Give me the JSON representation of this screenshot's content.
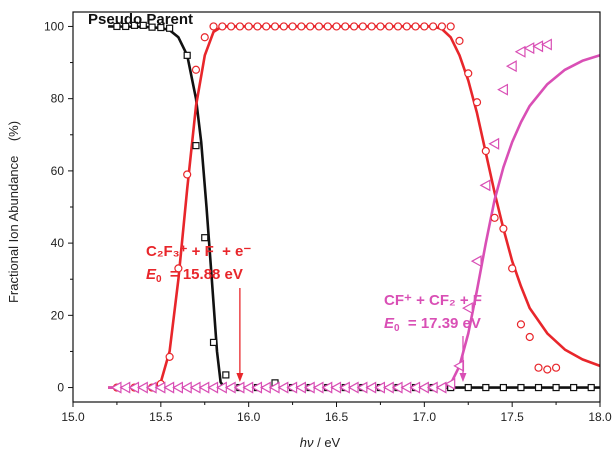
{
  "chart_data": {
    "type": "scatter",
    "xlabel_italic": "hν",
    "xlabel_rest": " / eV",
    "ylabel": "Fractional Ion Abundance    (%)",
    "xlim": [
      15.0,
      18.0
    ],
    "ylim": [
      -4,
      104
    ],
    "xticks": [
      "15.0",
      "15.5",
      "16.0",
      "16.5",
      "17.0",
      "17.5",
      "18.0"
    ],
    "yticks": [
      "0",
      "20",
      "40",
      "60",
      "80",
      "100"
    ],
    "annotations": {
      "pseudo_parent": "Pseudo Parent",
      "c2f3": {
        "line1": "C₂F₃⁺ + F  + e⁻",
        "e0_sym": "E",
        "e0_sub": "0",
        "e0_val": "  = 15.88 eV",
        "arrow_x": 15.95
      },
      "cf": {
        "line1": "CF⁺ + CF₂ + F",
        "e0_sym": "E",
        "e0_sub": "0",
        "e0_val": "  = 17.39 eV",
        "arrow_x": 17.22
      }
    },
    "series": [
      {
        "color": "#111111",
        "marker": "square",
        "points": [
          [
            15.25,
            100
          ],
          [
            15.3,
            100
          ],
          [
            15.35,
            100.3
          ],
          [
            15.4,
            100.3
          ],
          [
            15.45,
            99.8
          ],
          [
            15.5,
            99.7
          ],
          [
            15.55,
            99.5
          ],
          [
            15.65,
            92
          ],
          [
            15.7,
            67
          ],
          [
            15.75,
            41.5
          ],
          [
            15.8,
            12.5
          ],
          [
            15.87,
            3.5
          ],
          [
            15.95,
            0
          ],
          [
            16.05,
            0
          ],
          [
            16.15,
            1.3
          ],
          [
            16.25,
            0
          ],
          [
            16.35,
            0
          ],
          [
            16.45,
            0
          ],
          [
            16.55,
            0
          ],
          [
            16.65,
            0
          ],
          [
            16.75,
            0
          ],
          [
            16.85,
            0
          ],
          [
            16.95,
            0
          ],
          [
            17.05,
            0
          ],
          [
            17.15,
            0
          ],
          [
            17.25,
            0
          ],
          [
            17.35,
            0
          ],
          [
            17.45,
            0
          ],
          [
            17.55,
            0
          ],
          [
            17.65,
            0
          ],
          [
            17.75,
            0
          ],
          [
            17.85,
            0
          ],
          [
            17.95,
            0
          ]
        ],
        "fit": [
          [
            15.2,
            100
          ],
          [
            15.4,
            99.9
          ],
          [
            15.5,
            99.6
          ],
          [
            15.55,
            99.0
          ],
          [
            15.6,
            97.0
          ],
          [
            15.65,
            92
          ],
          [
            15.7,
            80
          ],
          [
            15.73,
            68
          ],
          [
            15.76,
            50
          ],
          [
            15.79,
            30
          ],
          [
            15.82,
            10
          ],
          [
            15.84,
            1.5
          ],
          [
            15.86,
            0
          ],
          [
            18.0,
            0
          ]
        ]
      },
      {
        "color": "#e8262b",
        "marker": "circle",
        "points": [
          [
            15.25,
            0
          ],
          [
            15.35,
            0
          ],
          [
            15.45,
            0
          ],
          [
            15.5,
            1
          ],
          [
            15.55,
            8.5
          ],
          [
            15.6,
            33
          ],
          [
            15.65,
            59
          ],
          [
            15.7,
            88
          ],
          [
            15.75,
            97
          ],
          [
            15.8,
            100
          ],
          [
            15.85,
            100
          ],
          [
            15.9,
            100
          ],
          [
            15.95,
            100
          ],
          [
            16.0,
            100
          ],
          [
            16.05,
            100
          ],
          [
            16.1,
            100
          ],
          [
            16.15,
            100
          ],
          [
            16.2,
            100
          ],
          [
            16.25,
            100
          ],
          [
            16.3,
            100
          ],
          [
            16.35,
            100
          ],
          [
            16.4,
            100
          ],
          [
            16.45,
            100
          ],
          [
            16.5,
            100
          ],
          [
            16.55,
            100
          ],
          [
            16.6,
            100
          ],
          [
            16.65,
            100
          ],
          [
            16.7,
            100
          ],
          [
            16.75,
            100
          ],
          [
            16.8,
            100
          ],
          [
            16.85,
            100
          ],
          [
            16.9,
            100
          ],
          [
            16.95,
            100
          ],
          [
            17.0,
            100
          ],
          [
            17.05,
            100
          ],
          [
            17.1,
            100
          ],
          [
            17.15,
            100
          ],
          [
            17.2,
            96
          ],
          [
            17.25,
            87
          ],
          [
            17.3,
            79
          ],
          [
            17.35,
            65.5
          ],
          [
            17.4,
            47
          ],
          [
            17.45,
            44
          ],
          [
            17.5,
            33
          ],
          [
            17.55,
            17.5
          ],
          [
            17.6,
            14
          ],
          [
            17.65,
            5.5
          ],
          [
            17.7,
            5
          ],
          [
            17.75,
            5.5
          ]
        ],
        "fit": [
          [
            15.2,
            0
          ],
          [
            15.45,
            0
          ],
          [
            15.5,
            1.5
          ],
          [
            15.55,
            10
          ],
          [
            15.6,
            30
          ],
          [
            15.65,
            55
          ],
          [
            15.7,
            78
          ],
          [
            15.75,
            92
          ],
          [
            15.8,
            98.5
          ],
          [
            15.85,
            100
          ],
          [
            17.05,
            100
          ],
          [
            17.1,
            99.3
          ],
          [
            17.15,
            97
          ],
          [
            17.2,
            92
          ],
          [
            17.25,
            85
          ],
          [
            17.3,
            76
          ],
          [
            17.35,
            65
          ],
          [
            17.4,
            54
          ],
          [
            17.45,
            44
          ],
          [
            17.5,
            35
          ],
          [
            17.55,
            28
          ],
          [
            17.6,
            22
          ],
          [
            17.7,
            15
          ],
          [
            17.8,
            10.5
          ],
          [
            17.9,
            7.8
          ],
          [
            18.0,
            6
          ]
        ]
      },
      {
        "color": "#d94fb5",
        "marker": "triangle-left",
        "points": [
          [
            15.25,
            0
          ],
          [
            15.3,
            0
          ],
          [
            15.35,
            0
          ],
          [
            15.4,
            0
          ],
          [
            15.45,
            0
          ],
          [
            15.5,
            0
          ],
          [
            15.55,
            0
          ],
          [
            15.6,
            0
          ],
          [
            15.65,
            0
          ],
          [
            15.7,
            0
          ],
          [
            15.75,
            0
          ],
          [
            15.8,
            0
          ],
          [
            15.85,
            0
          ],
          [
            15.9,
            0
          ],
          [
            15.95,
            0
          ],
          [
            16.0,
            0
          ],
          [
            16.05,
            0
          ],
          [
            16.1,
            0
          ],
          [
            16.15,
            0
          ],
          [
            16.2,
            0
          ],
          [
            16.25,
            0
          ],
          [
            16.3,
            0
          ],
          [
            16.35,
            0
          ],
          [
            16.4,
            0
          ],
          [
            16.45,
            0
          ],
          [
            16.5,
            0
          ],
          [
            16.55,
            0
          ],
          [
            16.6,
            0
          ],
          [
            16.65,
            0
          ],
          [
            16.7,
            0
          ],
          [
            16.75,
            0
          ],
          [
            16.8,
            0
          ],
          [
            16.85,
            0
          ],
          [
            16.9,
            0
          ],
          [
            16.95,
            0
          ],
          [
            17.0,
            0
          ],
          [
            17.05,
            0
          ],
          [
            17.1,
            0
          ],
          [
            17.15,
            1
          ],
          [
            17.2,
            6
          ],
          [
            17.25,
            22
          ],
          [
            17.3,
            35
          ],
          [
            17.35,
            56
          ],
          [
            17.4,
            67.5
          ],
          [
            17.45,
            82.5
          ],
          [
            17.5,
            89
          ],
          [
            17.55,
            93
          ],
          [
            17.6,
            94
          ],
          [
            17.65,
            94.5
          ],
          [
            17.7,
            95
          ]
        ],
        "fit": [
          [
            15.2,
            0
          ],
          [
            17.12,
            0
          ],
          [
            17.15,
            1
          ],
          [
            17.2,
            6
          ],
          [
            17.25,
            15
          ],
          [
            17.3,
            27
          ],
          [
            17.35,
            40
          ],
          [
            17.4,
            52
          ],
          [
            17.45,
            61
          ],
          [
            17.5,
            68
          ],
          [
            17.55,
            73.5
          ],
          [
            17.6,
            78
          ],
          [
            17.7,
            84
          ],
          [
            17.8,
            88
          ],
          [
            17.9,
            90.5
          ],
          [
            18.0,
            92
          ]
        ]
      }
    ]
  }
}
